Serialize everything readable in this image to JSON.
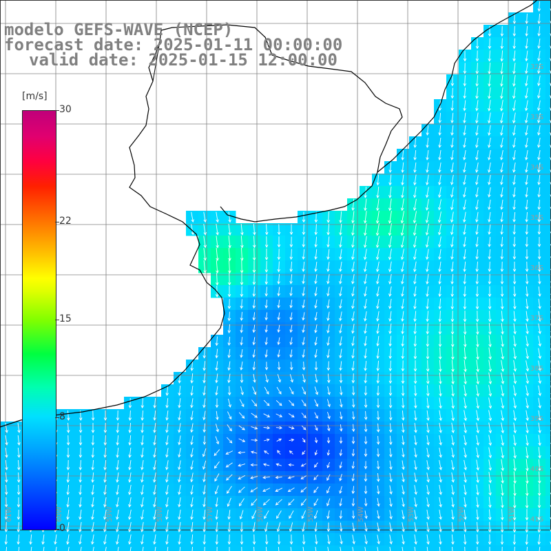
{
  "title": {
    "line1": "modelo GEFS-WAVE (NCEP)",
    "line2": "forecast date: 2025-01-11 00:00:00",
    "line3": "valid date: 2025-01-15 12:00:00"
  },
  "colorbar": {
    "unit": "[m/s]",
    "ticks": [
      "30",
      "22",
      "15",
      "8",
      "0"
    ],
    "tick_values": [
      30,
      22,
      15,
      8,
      0
    ],
    "min": 0,
    "max": 30
  },
  "map": {
    "lat_labels": [
      "32S",
      "33S",
      "34S",
      "35S",
      "36S",
      "37S",
      "38S",
      "39S",
      "40S",
      "41S"
    ],
    "lon_labels": [
      "61W",
      "60W",
      "59W",
      "58W",
      "57W",
      "56W",
      "55W",
      "54W",
      "53W",
      "52W",
      "51W"
    ],
    "colors": {
      "land": "#ffffff",
      "coast": "#000000",
      "grid": "#808080",
      "arrow": "#ffffff"
    }
  }
}
